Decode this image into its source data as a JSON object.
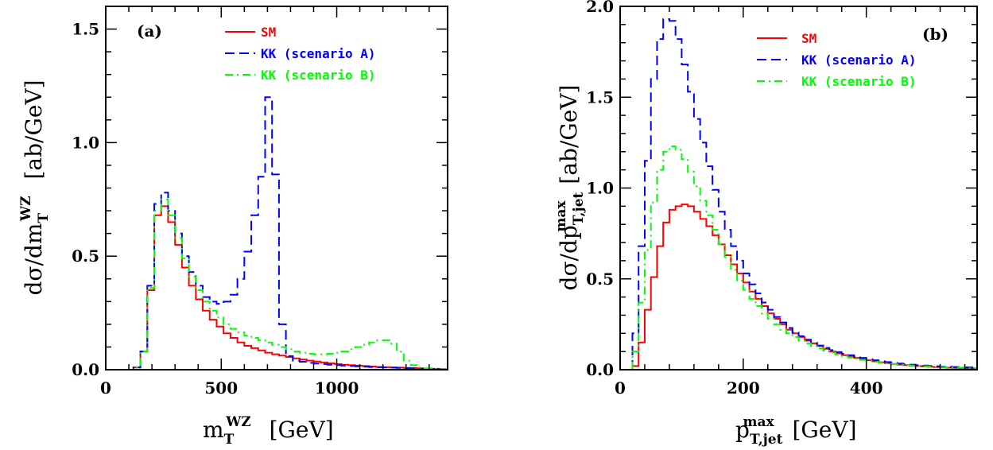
{
  "colors": {
    "sm": "#ff0000",
    "kkA": "#0000ff",
    "kkB": "#00ff00"
  },
  "chart_data": [
    {
      "type": "line",
      "panel": "(a)",
      "xlim": [
        0,
        1480
      ],
      "ylim": [
        0,
        1.6
      ],
      "xticks": [
        0,
        500,
        1000
      ],
      "yticks": [
        0.0,
        0.5,
        1.0,
        1.5
      ],
      "xtick_labels": [
        "0",
        "500",
        "1000"
      ],
      "ytick_labels": [
        "0.0",
        "0.5",
        "1.0",
        "1.5"
      ],
      "xlabel": {
        "main": "m",
        "sub": "T",
        "sup": "WZ",
        "unit": "[GeV]"
      },
      "ylabel": {
        "main": "dσ/dm",
        "sub": "T",
        "sup": "WZ",
        "unit": "[ab/GeV]"
      },
      "grid": false,
      "legend_position": "top-center",
      "bin_width": 30,
      "bin_start": 90,
      "series": [
        {
          "name": "SM",
          "style": "solid",
          "values": [
            0,
            0.01,
            0.08,
            0.35,
            0.68,
            0.72,
            0.65,
            0.55,
            0.45,
            0.37,
            0.31,
            0.26,
            0.22,
            0.19,
            0.16,
            0.14,
            0.12,
            0.105,
            0.095,
            0.085,
            0.075,
            0.068,
            0.062,
            0.056,
            0.05,
            0.045,
            0.04,
            0.036,
            0.032,
            0.028,
            0.025,
            0.022,
            0.02,
            0.018,
            0.016,
            0.014,
            0.012,
            0.011,
            0.01,
            0.009,
            0.008,
            0.007,
            0.006,
            0.005,
            0.004,
            0.003,
            0.002
          ]
        },
        {
          "name": "KK (scenario A)",
          "style": "dashed",
          "values": [
            0,
            0.01,
            0.08,
            0.37,
            0.73,
            0.78,
            0.7,
            0.6,
            0.5,
            0.43,
            0.37,
            0.32,
            0.3,
            0.29,
            0.3,
            0.33,
            0.4,
            0.52,
            0.68,
            0.85,
            1.2,
            0.86,
            0.2,
            0.06,
            0.04,
            0.035,
            0.03,
            0.027,
            0.025,
            0.022,
            0.02,
            0.018,
            0.016,
            0.015,
            0.013,
            0.012,
            0.011,
            0.01,
            0.009,
            0.008,
            0.007,
            0.006,
            0.005,
            0.004,
            0.003,
            0.002,
            0.001
          ]
        },
        {
          "name": "KK (scenario B)",
          "style": "dashdot",
          "values": [
            0,
            0.01,
            0.08,
            0.36,
            0.7,
            0.75,
            0.68,
            0.58,
            0.49,
            0.41,
            0.35,
            0.3,
            0.26,
            0.23,
            0.2,
            0.18,
            0.165,
            0.15,
            0.14,
            0.13,
            0.12,
            0.11,
            0.1,
            0.09,
            0.08,
            0.075,
            0.07,
            0.068,
            0.068,
            0.07,
            0.075,
            0.08,
            0.09,
            0.1,
            0.11,
            0.12,
            0.13,
            0.13,
            0.115,
            0.08,
            0.04,
            0.02,
            0.01,
            0.006,
            0.004,
            0.002,
            0.001
          ]
        }
      ]
    },
    {
      "type": "line",
      "panel": "(b)",
      "xlim": [
        0,
        580
      ],
      "ylim": [
        0,
        2.0
      ],
      "xticks": [
        0,
        200,
        400
      ],
      "yticks": [
        0.0,
        0.5,
        1.0,
        1.5,
        2.0
      ],
      "xtick_labels": [
        "0",
        "200",
        "400"
      ],
      "ytick_labels": [
        "0.0",
        "0.5",
        "1.0",
        "1.5",
        "2.0"
      ],
      "xlabel": {
        "main": "p",
        "sub": "T,jet",
        "sup": "max",
        "unit": "[GeV]"
      },
      "ylabel": {
        "main": "dσ/dp",
        "sub": "T,jet",
        "sup": "max",
        "unit": "[ab/GeV]"
      },
      "grid": false,
      "legend_position": "top-center",
      "bin_width": 10,
      "bin_start": 20,
      "series": [
        {
          "name": "SM",
          "style": "solid",
          "values": [
            0.02,
            0.15,
            0.33,
            0.51,
            0.68,
            0.81,
            0.88,
            0.9,
            0.91,
            0.9,
            0.87,
            0.83,
            0.79,
            0.74,
            0.69,
            0.63,
            0.58,
            0.53,
            0.48,
            0.43,
            0.39,
            0.35,
            0.31,
            0.28,
            0.25,
            0.22,
            0.2,
            0.18,
            0.16,
            0.145,
            0.13,
            0.115,
            0.1,
            0.09,
            0.08,
            0.072,
            0.065,
            0.058,
            0.052,
            0.046,
            0.041,
            0.036,
            0.032,
            0.028,
            0.025,
            0.022,
            0.02,
            0.018,
            0.016,
            0.014,
            0.012,
            0.011,
            0.01,
            0.009,
            0.008,
            0.007
          ]
        },
        {
          "name": "KK (scenario A)",
          "style": "dashed",
          "values": [
            0.2,
            0.68,
            1.15,
            1.6,
            1.82,
            1.93,
            1.92,
            1.82,
            1.68,
            1.53,
            1.38,
            1.25,
            1.12,
            0.99,
            0.87,
            0.77,
            0.68,
            0.6,
            0.53,
            0.47,
            0.42,
            0.37,
            0.33,
            0.29,
            0.26,
            0.23,
            0.205,
            0.185,
            0.165,
            0.148,
            0.133,
            0.12,
            0.108,
            0.097,
            0.088,
            0.08,
            0.072,
            0.065,
            0.058,
            0.052,
            0.047,
            0.042,
            0.038,
            0.034,
            0.031,
            0.028,
            0.025,
            0.023,
            0.021,
            0.019,
            0.017,
            0.016,
            0.015,
            0.014,
            0.013,
            0.012
          ]
        },
        {
          "name": "KK (scenario B)",
          "style": "dashdot",
          "values": [
            0.1,
            0.37,
            0.66,
            0.92,
            1.1,
            1.2,
            1.23,
            1.21,
            1.16,
            1.09,
            1.01,
            0.93,
            0.85,
            0.77,
            0.69,
            0.62,
            0.55,
            0.49,
            0.44,
            0.39,
            0.35,
            0.31,
            0.28,
            0.25,
            0.22,
            0.2,
            0.18,
            0.16,
            0.145,
            0.13,
            0.117,
            0.105,
            0.094,
            0.084,
            0.075,
            0.067,
            0.06,
            0.054,
            0.048,
            0.043,
            0.039,
            0.035,
            0.031,
            0.028,
            0.025,
            0.023,
            0.021,
            0.019,
            0.017,
            0.015,
            0.014,
            0.013,
            0.012,
            0.011,
            0.01,
            0.009
          ]
        }
      ]
    }
  ]
}
